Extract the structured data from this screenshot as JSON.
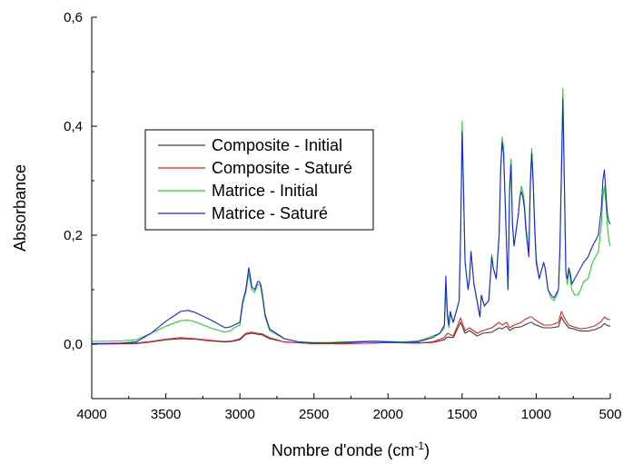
{
  "chart_data": {
    "type": "line",
    "xlabel": "Nombre d'onde (cm",
    "xlabel_sup": "-1",
    "xlabel_end": ")",
    "ylabel": "Absorbance",
    "xlim": [
      4000,
      500
    ],
    "ylim": [
      -0.1,
      0.6
    ],
    "x_ticks": [
      4000,
      3500,
      3000,
      2500,
      2000,
      1500,
      1000,
      500
    ],
    "x_tick_labels": [
      "4000",
      "3500",
      "3000",
      "2500",
      "2000",
      "1500",
      "1000",
      "500"
    ],
    "y_ticks": [
      0.0,
      0.2,
      0.4,
      0.6
    ],
    "y_tick_labels": [
      "0,0",
      "0,2",
      "0,4",
      "0,6"
    ],
    "grid": false,
    "legend_position": "upper-left",
    "series": [
      {
        "name": "Composite - Initial",
        "color": "#404040",
        "x": [
          4000,
          3700,
          3600,
          3500,
          3400,
          3300,
          3200,
          3100,
          3050,
          3000,
          2960,
          2920,
          2880,
          2850,
          2800,
          2700,
          2500,
          2300,
          2100,
          2000,
          1800,
          1700,
          1620,
          1600,
          1560,
          1510,
          1480,
          1450,
          1400,
          1360,
          1300,
          1250,
          1230,
          1200,
          1180,
          1150,
          1100,
          1080,
          1040,
          1030,
          1010,
          980,
          950,
          900,
          850,
          830,
          810,
          780,
          750,
          700,
          650,
          600,
          560,
          540,
          520,
          500
        ],
        "y": [
          0.0,
          0.001,
          0.004,
          0.008,
          0.01,
          0.009,
          0.006,
          0.004,
          0.005,
          0.008,
          0.018,
          0.02,
          0.018,
          0.017,
          0.01,
          0.004,
          0.001,
          0.001,
          0.002,
          0.003,
          0.002,
          0.003,
          0.008,
          0.013,
          0.012,
          0.04,
          0.02,
          0.025,
          0.015,
          0.02,
          0.022,
          0.03,
          0.028,
          0.033,
          0.025,
          0.03,
          0.032,
          0.035,
          0.04,
          0.04,
          0.036,
          0.033,
          0.03,
          0.03,
          0.032,
          0.05,
          0.04,
          0.03,
          0.028,
          0.024,
          0.024,
          0.027,
          0.032,
          0.038,
          0.034,
          0.033
        ]
      },
      {
        "name": "Composite - Saturé",
        "color": "#e8231e",
        "x": [
          4000,
          3700,
          3600,
          3500,
          3400,
          3300,
          3200,
          3100,
          3050,
          3000,
          2960,
          2920,
          2880,
          2850,
          2800,
          2700,
          2500,
          2300,
          2100,
          2000,
          1800,
          1700,
          1620,
          1600,
          1560,
          1510,
          1480,
          1450,
          1400,
          1360,
          1300,
          1250,
          1230,
          1200,
          1180,
          1150,
          1100,
          1080,
          1040,
          1030,
          1010,
          980,
          950,
          900,
          850,
          830,
          810,
          780,
          750,
          700,
          650,
          600,
          560,
          540,
          520,
          500
        ],
        "y": [
          0.0,
          0.002,
          0.005,
          0.009,
          0.012,
          0.01,
          0.007,
          0.005,
          0.006,
          0.01,
          0.02,
          0.022,
          0.02,
          0.019,
          0.012,
          0.004,
          0.001,
          0.001,
          0.002,
          0.003,
          0.002,
          0.004,
          0.012,
          0.02,
          0.015,
          0.048,
          0.025,
          0.03,
          0.02,
          0.025,
          0.03,
          0.04,
          0.035,
          0.04,
          0.03,
          0.035,
          0.04,
          0.045,
          0.05,
          0.05,
          0.045,
          0.04,
          0.035,
          0.035,
          0.04,
          0.06,
          0.048,
          0.035,
          0.032,
          0.028,
          0.03,
          0.034,
          0.042,
          0.05,
          0.046,
          0.045
        ]
      },
      {
        "name": "Matrice - Initial",
        "color": "#22d422",
        "x": [
          4000,
          3800,
          3700,
          3600,
          3500,
          3400,
          3350,
          3300,
          3200,
          3100,
          3060,
          3040,
          3000,
          2980,
          2960,
          2940,
          2930,
          2920,
          2900,
          2880,
          2870,
          2860,
          2850,
          2830,
          2800,
          2700,
          2600,
          2500,
          2400,
          2300,
          2200,
          2100,
          2000,
          1900,
          1800,
          1750,
          1700,
          1650,
          1620,
          1610,
          1600,
          1590,
          1580,
          1560,
          1520,
          1510,
          1500,
          1480,
          1460,
          1450,
          1440,
          1420,
          1400,
          1380,
          1370,
          1350,
          1320,
          1300,
          1290,
          1270,
          1250,
          1240,
          1230,
          1220,
          1200,
          1190,
          1180,
          1170,
          1160,
          1150,
          1140,
          1120,
          1110,
          1100,
          1090,
          1080,
          1070,
          1050,
          1040,
          1030,
          1020,
          1010,
          1000,
          980,
          960,
          950,
          940,
          920,
          900,
          880,
          860,
          850,
          840,
          830,
          825,
          820,
          810,
          800,
          790,
          780,
          770,
          760,
          740,
          720,
          700,
          680,
          650,
          620,
          600,
          580,
          560,
          550,
          540,
          530,
          520,
          510,
          500
        ],
        "y": [
          0.005,
          0.006,
          0.008,
          0.02,
          0.033,
          0.043,
          0.044,
          0.041,
          0.03,
          0.022,
          0.025,
          0.03,
          0.035,
          0.075,
          0.095,
          0.13,
          0.115,
          0.1,
          0.095,
          0.11,
          0.11,
          0.105,
          0.09,
          0.05,
          0.025,
          0.01,
          0.004,
          0.003,
          0.003,
          0.004,
          0.005,
          0.006,
          0.005,
          0.004,
          0.006,
          0.01,
          0.015,
          0.02,
          0.03,
          0.1,
          0.05,
          0.03,
          0.055,
          0.04,
          0.08,
          0.2,
          0.41,
          0.15,
          0.1,
          0.12,
          0.17,
          0.11,
          0.08,
          0.05,
          0.09,
          0.07,
          0.08,
          0.165,
          0.14,
          0.12,
          0.2,
          0.32,
          0.38,
          0.36,
          0.18,
          0.1,
          0.29,
          0.34,
          0.22,
          0.18,
          0.2,
          0.24,
          0.27,
          0.29,
          0.28,
          0.26,
          0.22,
          0.17,
          0.3,
          0.36,
          0.3,
          0.22,
          0.16,
          0.12,
          0.14,
          0.15,
          0.14,
          0.1,
          0.085,
          0.08,
          0.09,
          0.1,
          0.18,
          0.33,
          0.4,
          0.47,
          0.3,
          0.13,
          0.11,
          0.135,
          0.12,
          0.1,
          0.09,
          0.09,
          0.1,
          0.115,
          0.12,
          0.15,
          0.16,
          0.17,
          0.22,
          0.27,
          0.29,
          0.26,
          0.22,
          0.19,
          0.18
        ]
      },
      {
        "name": "Matrice - Saturé",
        "color": "#1e22e6",
        "x": [
          4000,
          3800,
          3700,
          3600,
          3500,
          3400,
          3350,
          3300,
          3200,
          3100,
          3060,
          3040,
          3000,
          2980,
          2960,
          2940,
          2930,
          2920,
          2900,
          2880,
          2870,
          2860,
          2850,
          2830,
          2800,
          2700,
          2600,
          2500,
          2400,
          2300,
          2200,
          2100,
          2000,
          1900,
          1800,
          1750,
          1700,
          1650,
          1620,
          1610,
          1600,
          1590,
          1580,
          1560,
          1520,
          1510,
          1500,
          1480,
          1460,
          1450,
          1440,
          1420,
          1400,
          1380,
          1370,
          1350,
          1320,
          1300,
          1290,
          1270,
          1250,
          1240,
          1230,
          1220,
          1200,
          1190,
          1180,
          1170,
          1160,
          1150,
          1140,
          1120,
          1110,
          1100,
          1090,
          1080,
          1070,
          1050,
          1040,
          1030,
          1020,
          1010,
          1000,
          980,
          960,
          950,
          940,
          920,
          900,
          880,
          860,
          850,
          840,
          830,
          825,
          820,
          810,
          800,
          790,
          780,
          770,
          760,
          740,
          720,
          700,
          680,
          650,
          620,
          600,
          580,
          560,
          550,
          540,
          530,
          520,
          510,
          500
        ],
        "y": [
          0.001,
          0.002,
          0.004,
          0.02,
          0.042,
          0.06,
          0.062,
          0.058,
          0.045,
          0.03,
          0.032,
          0.035,
          0.04,
          0.08,
          0.1,
          0.14,
          0.125,
          0.105,
          0.1,
          0.115,
          0.115,
          0.11,
          0.095,
          0.055,
          0.028,
          0.01,
          0.004,
          0.002,
          0.002,
          0.003,
          0.004,
          0.005,
          0.004,
          0.003,
          0.004,
          0.008,
          0.012,
          0.02,
          0.035,
          0.125,
          0.06,
          0.035,
          0.06,
          0.04,
          0.08,
          0.2,
          0.39,
          0.15,
          0.1,
          0.12,
          0.17,
          0.11,
          0.08,
          0.05,
          0.09,
          0.07,
          0.08,
          0.16,
          0.14,
          0.12,
          0.2,
          0.32,
          0.37,
          0.35,
          0.18,
          0.1,
          0.28,
          0.33,
          0.22,
          0.18,
          0.2,
          0.24,
          0.27,
          0.28,
          0.27,
          0.25,
          0.21,
          0.16,
          0.29,
          0.35,
          0.29,
          0.21,
          0.15,
          0.12,
          0.14,
          0.15,
          0.14,
          0.1,
          0.09,
          0.085,
          0.095,
          0.1,
          0.17,
          0.31,
          0.38,
          0.45,
          0.3,
          0.13,
          0.12,
          0.14,
          0.13,
          0.11,
          0.12,
          0.13,
          0.14,
          0.15,
          0.16,
          0.18,
          0.19,
          0.2,
          0.25,
          0.3,
          0.32,
          0.28,
          0.24,
          0.225,
          0.22
        ]
      }
    ]
  }
}
